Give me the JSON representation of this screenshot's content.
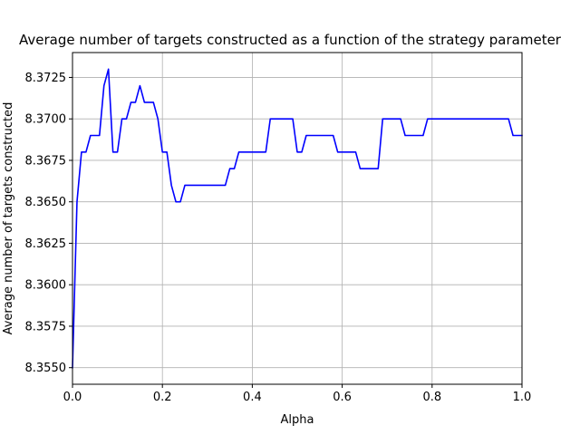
{
  "chart_data": {
    "type": "line",
    "title": "Average number of targets constructed as a function of the strategy parameter",
    "xlabel": "Alpha",
    "ylabel": "Average number of targets constructed",
    "xlim": [
      0.0,
      1.0
    ],
    "ylim": [
      8.354,
      8.374
    ],
    "xticks": [
      0.0,
      0.2,
      0.4,
      0.6,
      0.8,
      1.0
    ],
    "xtick_labels": [
      "0.0",
      "0.2",
      "0.4",
      "0.6",
      "0.8",
      "1.0"
    ],
    "yticks": [
      8.355,
      8.3575,
      8.36,
      8.3625,
      8.365,
      8.3675,
      8.37,
      8.3725
    ],
    "ytick_labels": [
      "8.3550",
      "8.3575",
      "8.3600",
      "8.3625",
      "8.3650",
      "8.3675",
      "8.3700",
      "8.3725"
    ],
    "grid": true,
    "legend": false,
    "series": [
      {
        "color": "#0000ff",
        "x": [
          0.0,
          0.01,
          0.015,
          0.02,
          0.03,
          0.04,
          0.05,
          0.06,
          0.07,
          0.08,
          0.09,
          0.1,
          0.11,
          0.12,
          0.13,
          0.14,
          0.15,
          0.16,
          0.17,
          0.18,
          0.19,
          0.2,
          0.21,
          0.22,
          0.23,
          0.24,
          0.25,
          0.26,
          0.27,
          0.28,
          0.29,
          0.3,
          0.31,
          0.32,
          0.33,
          0.34,
          0.35,
          0.36,
          0.37,
          0.38,
          0.39,
          0.4,
          0.41,
          0.42,
          0.43,
          0.44,
          0.45,
          0.46,
          0.47,
          0.48,
          0.49,
          0.5,
          0.51,
          0.52,
          0.53,
          0.54,
          0.55,
          0.56,
          0.57,
          0.58,
          0.59,
          0.6,
          0.61,
          0.62,
          0.63,
          0.64,
          0.65,
          0.66,
          0.67,
          0.68,
          0.69,
          0.7,
          0.71,
          0.72,
          0.73,
          0.74,
          0.75,
          0.76,
          0.77,
          0.78,
          0.79,
          0.8,
          0.81,
          0.82,
          0.83,
          0.84,
          0.85,
          0.86,
          0.87,
          0.88,
          0.89,
          0.9,
          0.91,
          0.92,
          0.93,
          0.94,
          0.95,
          0.96,
          0.97,
          0.98,
          0.99,
          1.0
        ],
        "y": [
          8.355,
          8.365,
          8.3665,
          8.368,
          8.368,
          8.369,
          8.369,
          8.369,
          8.372,
          8.373,
          8.368,
          8.368,
          8.37,
          8.37,
          8.371,
          8.371,
          8.372,
          8.371,
          8.371,
          8.371,
          8.37,
          8.368,
          8.368,
          8.366,
          8.365,
          8.365,
          8.366,
          8.366,
          8.366,
          8.366,
          8.366,
          8.366,
          8.366,
          8.366,
          8.366,
          8.366,
          8.367,
          8.367,
          8.368,
          8.368,
          8.368,
          8.368,
          8.368,
          8.368,
          8.368,
          8.37,
          8.37,
          8.37,
          8.37,
          8.37,
          8.37,
          8.368,
          8.368,
          8.369,
          8.369,
          8.369,
          8.369,
          8.369,
          8.369,
          8.369,
          8.368,
          8.368,
          8.368,
          8.368,
          8.368,
          8.367,
          8.367,
          8.367,
          8.367,
          8.367,
          8.37,
          8.37,
          8.37,
          8.37,
          8.37,
          8.369,
          8.369,
          8.369,
          8.369,
          8.369,
          8.37,
          8.37,
          8.37,
          8.37,
          8.37,
          8.37,
          8.37,
          8.37,
          8.37,
          8.37,
          8.37,
          8.37,
          8.37,
          8.37,
          8.37,
          8.37,
          8.37,
          8.37,
          8.37,
          8.369,
          8.369,
          8.369
        ]
      }
    ],
    "colors": {
      "line": "#0000ff",
      "grid": "#b0b0b0",
      "axes": "#000000",
      "background": "#ffffff"
    }
  }
}
